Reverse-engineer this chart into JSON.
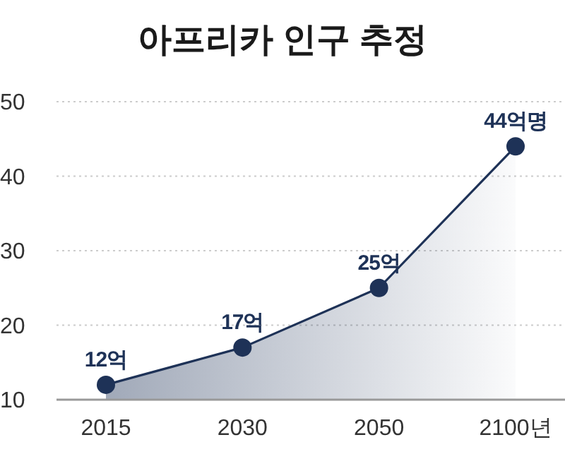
{
  "chart_data": {
    "type": "area",
    "title": "아프리카 인구 추정",
    "categories": [
      "2015",
      "2030",
      "2050",
      "2100년"
    ],
    "series": [
      {
        "color": "#1e3257",
        "values": [
          12,
          17,
          25,
          44
        ],
        "value_labels": [
          "12억",
          "17억",
          "25억",
          "44억명"
        ]
      }
    ],
    "ylim": [
      10,
      50
    ],
    "yticks": [
      10,
      20,
      30,
      40,
      50
    ],
    "grid": "y",
    "marker": "circle"
  }
}
